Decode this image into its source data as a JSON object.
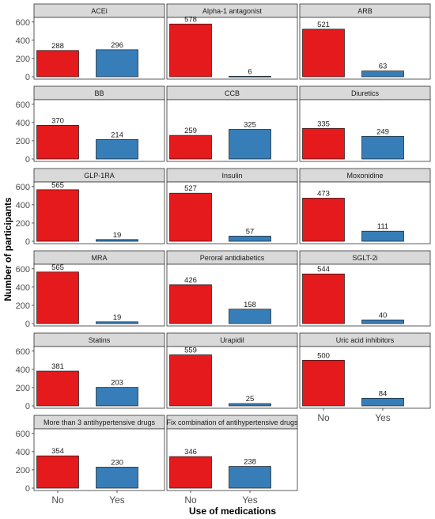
{
  "chart_data": {
    "type": "bar",
    "layout": "facet-grid",
    "xlabel": "Use of medications",
    "ylabel": "Number of participants",
    "ylim": [
      0,
      650
    ],
    "yticks": [
      0,
      200,
      400,
      600
    ],
    "categories": [
      "No",
      "Yes"
    ],
    "colors": {
      "No": "#e41a1c",
      "Yes": "#377eb8"
    },
    "grid": false,
    "legend": "none",
    "panels": [
      {
        "title": "ACEi",
        "values": [
          288,
          296
        ]
      },
      {
        "title": "Alpha-1 antagonist",
        "values": [
          578,
          6
        ]
      },
      {
        "title": "ARB",
        "values": [
          521,
          63
        ]
      },
      {
        "title": "BB",
        "values": [
          370,
          214
        ]
      },
      {
        "title": "CCB",
        "values": [
          259,
          325
        ]
      },
      {
        "title": "Diuretics",
        "values": [
          335,
          249
        ]
      },
      {
        "title": "GLP-1RA",
        "values": [
          565,
          19
        ]
      },
      {
        "title": "Insulin",
        "values": [
          527,
          57
        ]
      },
      {
        "title": "Moxonidine",
        "values": [
          473,
          111
        ]
      },
      {
        "title": "MRA",
        "values": [
          565,
          19
        ]
      },
      {
        "title": "Peroral antidiabetics",
        "values": [
          426,
          158
        ]
      },
      {
        "title": "SGLT-2i",
        "values": [
          544,
          40
        ]
      },
      {
        "title": "Statins",
        "values": [
          381,
          203
        ]
      },
      {
        "title": "Urapidil",
        "values": [
          559,
          25
        ]
      },
      {
        "title": "Uric acid inhibitors",
        "values": [
          500,
          84
        ]
      },
      {
        "title": "More than 3 antihypertensive drugs",
        "values": [
          354,
          230
        ]
      },
      {
        "title": "Fix combination of antihypertensive drugs",
        "values": [
          346,
          238
        ]
      }
    ]
  }
}
